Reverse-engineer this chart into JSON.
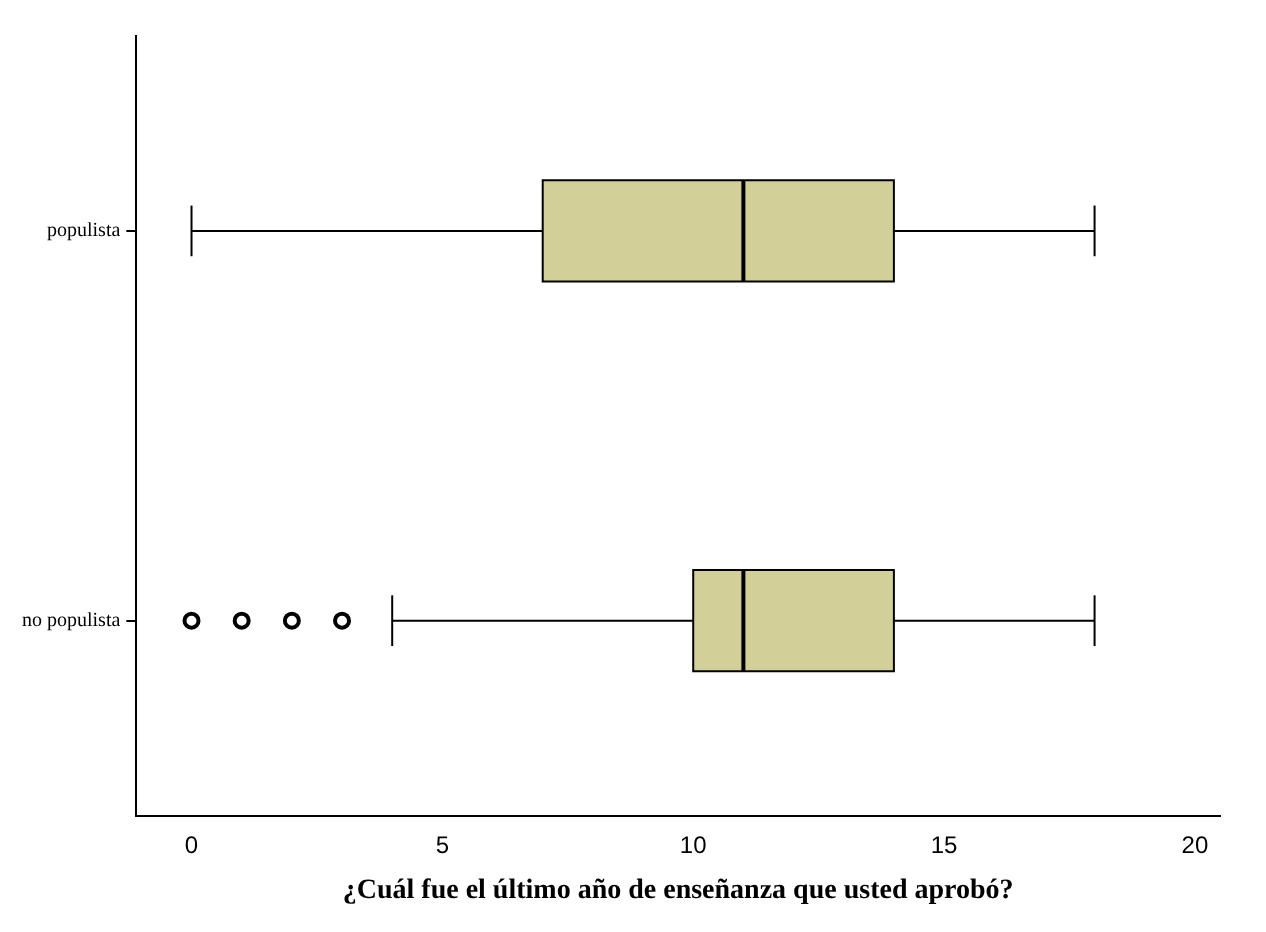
{
  "chart_data": {
    "type": "box",
    "orientation": "horizontal",
    "xlabel": "¿Cuál fue el último año de enseñanza que usted aprobó?",
    "categories": [
      "populista",
      "no populista"
    ],
    "color": "#d3cf98",
    "xlim": [
      -1.1,
      20.5
    ],
    "xticks": [
      0,
      5,
      10,
      15,
      20
    ],
    "grid": false,
    "legend": false,
    "boxes": [
      {
        "low": 0,
        "q1": 7,
        "median": 11,
        "q3": 14,
        "high": 18
      },
      {
        "low": 4,
        "q1": 10,
        "median": 11,
        "q3": 14,
        "high": 18,
        "outliers": [
          0,
          1,
          2,
          3
        ]
      }
    ]
  }
}
